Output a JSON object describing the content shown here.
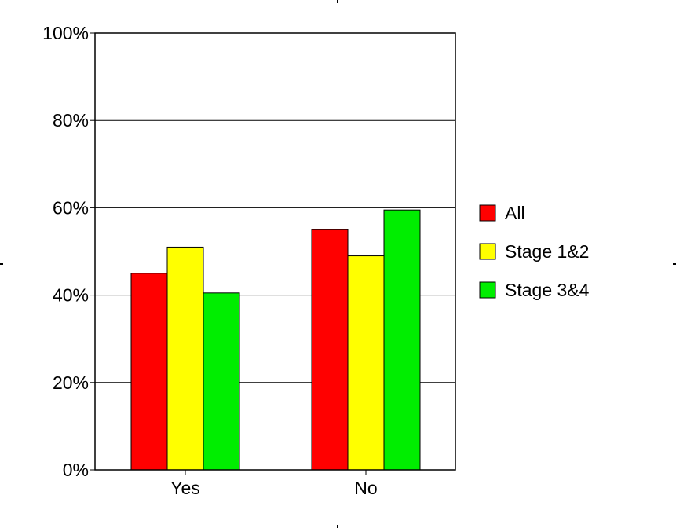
{
  "chart_data": {
    "type": "bar",
    "categories": [
      "Yes",
      "No"
    ],
    "series": [
      {
        "name": "All",
        "color": "#ff0000",
        "values": [
          45,
          55
        ]
      },
      {
        "name": "Stage 1&2",
        "color": "#ffff00",
        "values": [
          51,
          49
        ]
      },
      {
        "name": "Stage 3&4",
        "color": "#00ee00",
        "values": [
          40.5,
          59.5
        ]
      }
    ],
    "ylim": [
      0,
      100
    ],
    "yticks": [
      0,
      20,
      40,
      60,
      80,
      100
    ],
    "ytick_labels": [
      "0%",
      "20%",
      "40%",
      "60%",
      "80%",
      "100%"
    ],
    "grid": true,
    "legend_position": "right",
    "title": "",
    "xlabel": "",
    "ylabel": ""
  }
}
